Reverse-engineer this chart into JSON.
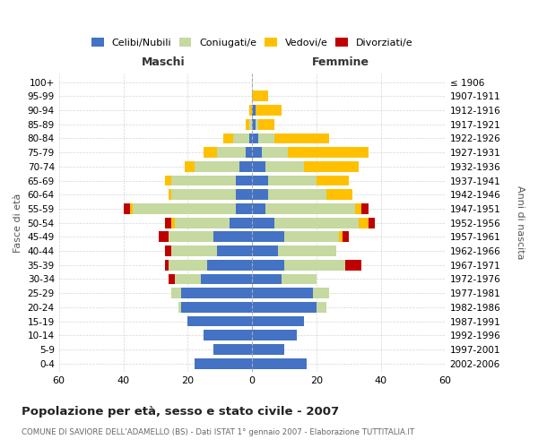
{
  "age_groups": [
    "0-4",
    "5-9",
    "10-14",
    "15-19",
    "20-24",
    "25-29",
    "30-34",
    "35-39",
    "40-44",
    "45-49",
    "50-54",
    "55-59",
    "60-64",
    "65-69",
    "70-74",
    "75-79",
    "80-84",
    "85-89",
    "90-94",
    "95-99",
    "100+"
  ],
  "birth_years": [
    "2002-2006",
    "1997-2001",
    "1992-1996",
    "1987-1991",
    "1982-1986",
    "1977-1981",
    "1972-1976",
    "1967-1971",
    "1962-1966",
    "1957-1961",
    "1952-1956",
    "1947-1951",
    "1942-1946",
    "1937-1941",
    "1932-1936",
    "1927-1931",
    "1922-1926",
    "1917-1921",
    "1912-1916",
    "1907-1911",
    "≤ 1906"
  ],
  "maschi": {
    "celibi": [
      18,
      12,
      15,
      20,
      22,
      22,
      16,
      14,
      11,
      12,
      7,
      5,
      5,
      5,
      4,
      2,
      1,
      0,
      0,
      0,
      0
    ],
    "coniugati": [
      0,
      0,
      0,
      0,
      1,
      3,
      8,
      12,
      14,
      14,
      17,
      32,
      20,
      20,
      14,
      9,
      5,
      1,
      0,
      0,
      0
    ],
    "vedovi": [
      0,
      0,
      0,
      0,
      0,
      0,
      0,
      0,
      0,
      0,
      1,
      1,
      1,
      2,
      3,
      4,
      3,
      1,
      1,
      0,
      0
    ],
    "divorziati": [
      0,
      0,
      0,
      0,
      0,
      0,
      2,
      1,
      2,
      3,
      2,
      2,
      0,
      0,
      0,
      0,
      0,
      0,
      0,
      0,
      0
    ]
  },
  "femmine": {
    "nubili": [
      17,
      10,
      14,
      16,
      20,
      19,
      9,
      10,
      8,
      10,
      7,
      4,
      5,
      5,
      4,
      3,
      2,
      1,
      1,
      0,
      0
    ],
    "coniugate": [
      0,
      0,
      0,
      0,
      3,
      5,
      11,
      19,
      18,
      17,
      26,
      28,
      18,
      15,
      12,
      8,
      5,
      1,
      0,
      0,
      0
    ],
    "vedove": [
      0,
      0,
      0,
      0,
      0,
      0,
      0,
      0,
      0,
      1,
      3,
      2,
      8,
      10,
      17,
      25,
      17,
      5,
      8,
      5,
      0
    ],
    "divorziate": [
      0,
      0,
      0,
      0,
      0,
      0,
      0,
      5,
      0,
      2,
      2,
      2,
      0,
      0,
      0,
      0,
      0,
      0,
      0,
      0,
      0
    ]
  },
  "colors": {
    "celibi": "#4472c4",
    "coniugati": "#c5d9a0",
    "vedovi": "#ffc000",
    "divorziati": "#c00000"
  },
  "title": "Popolazione per età, sesso e stato civile - 2007",
  "subtitle": "COMUNE DI SAVIORE DELL'ADAMELLO (BS) - Dati ISTAT 1° gennaio 2007 - Elaborazione TUTTITALIA.IT",
  "ylabel_left": "Fasce di età",
  "ylabel_right": "Anni di nascita",
  "xlabel_left": "Maschi",
  "xlabel_right": "Femmine",
  "xlim": 60,
  "bg_color": "#ffffff",
  "grid_color": "#cccccc"
}
